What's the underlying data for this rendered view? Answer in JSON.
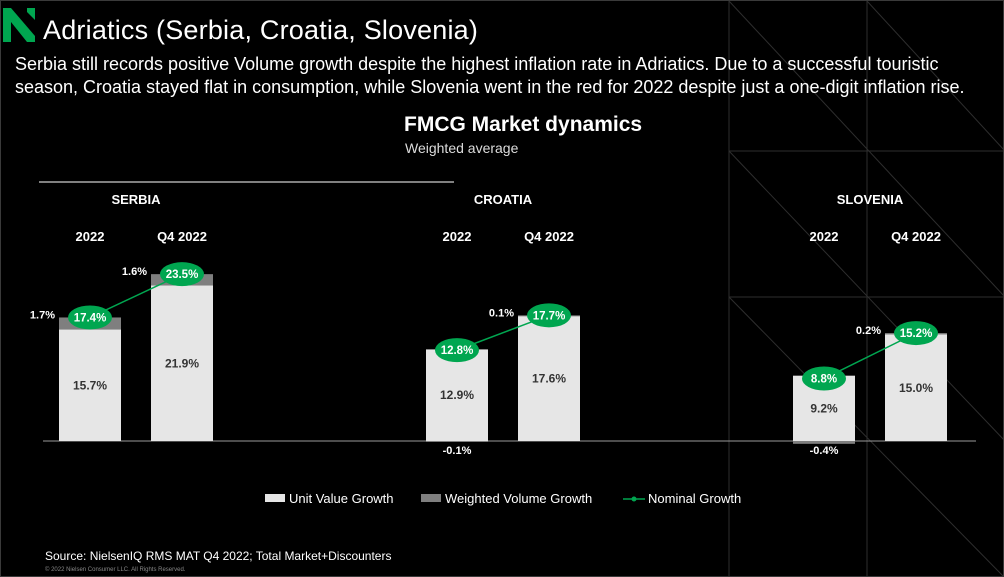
{
  "header": {
    "title": "Adriatics (Serbia, Croatia, Slovenia)",
    "subtitle": "Serbia still records positive Volume growth despite the highest inflation rate in Adriatics. Due to a successful touristic season, Croatia stayed flat in consumption, while Slovenia went in the red for 2022 despite just a one-digit inflation rise."
  },
  "footer": {
    "source": "Source: NielsenIQ RMS MAT Q4 2022; Total Market+Discounters",
    "copyright": "© 2022 Nielsen Consumer LLC. All Rights Reserved."
  },
  "colors": {
    "accent": "#00a650",
    "unit_value": "#e6e6e6",
    "weighted_volume": "#7f7f7f",
    "background": "#000000"
  },
  "chart_data": {
    "type": "bar",
    "title": "FMCG Market dynamics",
    "subtitle": "Weighted average",
    "stacked": true,
    "groups": [
      {
        "name": "SERBIA",
        "categories": [
          "2022",
          "Q4 2022"
        ],
        "unit_value_growth": [
          15.7,
          21.9
        ],
        "weighted_volume_growth": [
          1.7,
          1.6
        ],
        "nominal_growth": [
          17.4,
          23.5
        ],
        "unit_value_labels": [
          "15.7%",
          "21.9%"
        ],
        "weighted_volume_labels": [
          "1.7%",
          "1.6%"
        ],
        "nominal_labels": [
          "17.4%",
          "23.5%"
        ]
      },
      {
        "name": "CROATIA",
        "categories": [
          "2022",
          "Q4 2022"
        ],
        "unit_value_growth": [
          12.9,
          17.6
        ],
        "weighted_volume_growth": [
          -0.1,
          0.1
        ],
        "nominal_growth": [
          12.8,
          17.7
        ],
        "unit_value_labels": [
          "12.9%",
          "17.6%"
        ],
        "weighted_volume_labels": [
          "-0.1%",
          "0.1%"
        ],
        "nominal_labels": [
          "12.8%",
          "17.7%"
        ]
      },
      {
        "name": "SLOVENIA",
        "categories": [
          "2022",
          "Q4 2022"
        ],
        "unit_value_growth": [
          9.2,
          15.0
        ],
        "weighted_volume_growth": [
          -0.4,
          0.2
        ],
        "nominal_growth": [
          8.8,
          15.2
        ],
        "unit_value_labels": [
          "9.2%",
          "15.0%"
        ],
        "weighted_volume_labels": [
          "-0.4%",
          "0.2%"
        ],
        "nominal_labels": [
          "8.8%",
          "15.2%"
        ]
      }
    ],
    "legend": {
      "position": "bottom",
      "items": [
        "Unit Value Growth",
        "Weighted Volume Growth",
        "Nominal Growth"
      ]
    },
    "grid": false
  }
}
